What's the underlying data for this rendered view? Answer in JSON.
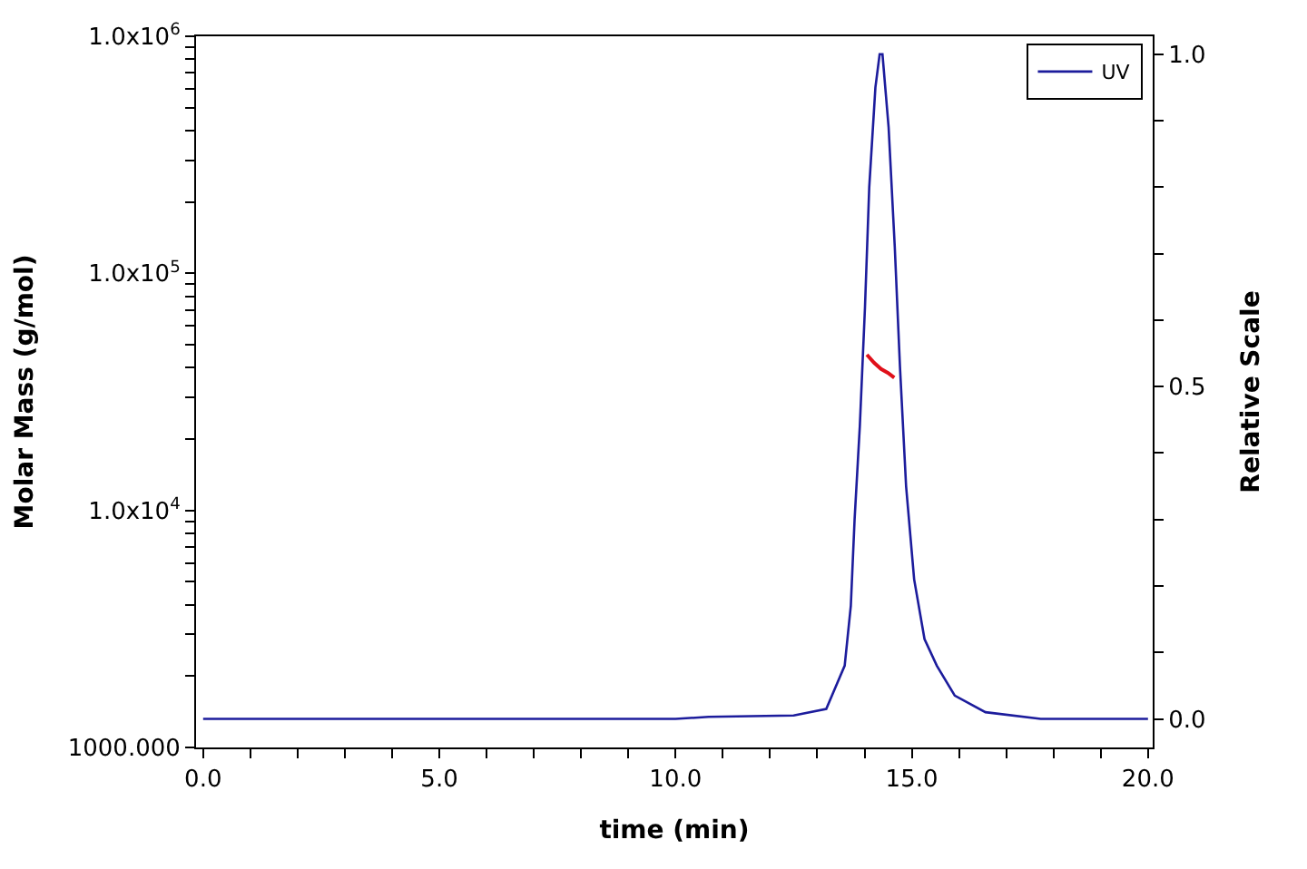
{
  "chart_data": {
    "type": "line",
    "xlabel": "time (min)",
    "ylabel": "Molar Mass (g/mol)",
    "y2label": "Relative Scale",
    "xlim": [
      -0.15,
      20.1
    ],
    "xticks": [
      {
        "value": 0,
        "label": "0.0"
      },
      {
        "value": 1,
        "label": null
      },
      {
        "value": 2,
        "label": null
      },
      {
        "value": 3,
        "label": null
      },
      {
        "value": 4,
        "label": null
      },
      {
        "value": 5,
        "label": "5.0"
      },
      {
        "value": 6,
        "label": null
      },
      {
        "value": 7,
        "label": null
      },
      {
        "value": 8,
        "label": null
      },
      {
        "value": 9,
        "label": null
      },
      {
        "value": 10,
        "label": "10.0"
      },
      {
        "value": 11,
        "label": null
      },
      {
        "value": 12,
        "label": null
      },
      {
        "value": 13,
        "label": null
      },
      {
        "value": 14,
        "label": null
      },
      {
        "value": 15,
        "label": "15.0"
      },
      {
        "value": 16,
        "label": null
      },
      {
        "value": 17,
        "label": null
      },
      {
        "value": 18,
        "label": null
      },
      {
        "value": 19,
        "label": null
      },
      {
        "value": 20,
        "label": "20.0"
      }
    ],
    "log": "y",
    "ylim": [
      1000,
      1000000
    ],
    "yticks": [
      {
        "value": 1000,
        "label": "1000.000"
      },
      {
        "value": 2000,
        "label": null
      },
      {
        "value": 3000,
        "label": null
      },
      {
        "value": 4000,
        "label": null
      },
      {
        "value": 5000,
        "label": null
      },
      {
        "value": 6000,
        "label": null
      },
      {
        "value": 7000,
        "label": null
      },
      {
        "value": 8000,
        "label": null
      },
      {
        "value": 9000,
        "label": null
      },
      {
        "value": 10000,
        "label": "1.0x10$^{4}$"
      },
      {
        "value": 20000,
        "label": null
      },
      {
        "value": 30000,
        "label": null
      },
      {
        "value": 40000,
        "label": null
      },
      {
        "value": 50000,
        "label": null
      },
      {
        "value": 60000,
        "label": null
      },
      {
        "value": 70000,
        "label": null
      },
      {
        "value": 80000,
        "label": null
      },
      {
        "value": 90000,
        "label": null
      },
      {
        "value": 100000,
        "label": "1.0x10$^{5}$"
      },
      {
        "value": 200000,
        "label": null
      },
      {
        "value": 300000,
        "label": null
      },
      {
        "value": 400000,
        "label": null
      },
      {
        "value": 500000,
        "label": null
      },
      {
        "value": 600000,
        "label": null
      },
      {
        "value": 700000,
        "label": null
      },
      {
        "value": 800000,
        "label": null
      },
      {
        "value": 900000,
        "label": null
      },
      {
        "value": 1000000,
        "label": "1.0x10$^{6}$"
      }
    ],
    "y2lim": [
      -0.043,
      1.027
    ],
    "y2ticks": [
      {
        "value": 0,
        "label": "0.0"
      },
      {
        "value": 0.1,
        "label": null
      },
      {
        "value": 0.2,
        "label": null
      },
      {
        "value": 0.3,
        "label": null
      },
      {
        "value": 0.4,
        "label": null
      },
      {
        "value": 0.5,
        "label": "0.5"
      },
      {
        "value": 0.6,
        "label": null
      },
      {
        "value": 0.7,
        "label": null
      },
      {
        "value": 0.8,
        "label": null
      },
      {
        "value": 0.9,
        "label": null
      },
      {
        "value": 1.0,
        "label": "1.0"
      }
    ],
    "legend": "top right",
    "marker": "none",
    "line_style": "solid",
    "series": [
      {
        "name": "UV",
        "color": "#1c1c9c",
        "axis": "y2",
        "x": [
          0,
          5,
          10,
          10.7,
          12.5,
          13.19,
          13.58,
          13.71,
          13.79,
          13.9,
          14.01,
          14.1,
          14.23,
          14.32,
          14.38,
          14.51,
          14.64,
          14.75,
          14.88,
          15.05,
          15.27,
          15.53,
          15.91,
          16.56,
          17.73,
          20
        ],
        "values": [
          0.0,
          0.0,
          0.0,
          0.003,
          0.005,
          0.015,
          0.08,
          0.17,
          0.3,
          0.44,
          0.62,
          0.8,
          0.95,
          1.0,
          1.0,
          0.89,
          0.71,
          0.53,
          0.35,
          0.21,
          0.12,
          0.08,
          0.035,
          0.01,
          0.0,
          0.0
        ]
      },
      {
        "color": "#e0101a",
        "axis": "y",
        "x": [
          14.05,
          14.2,
          14.35,
          14.5,
          14.63
        ],
        "values": [
          45400,
          42000,
          39500,
          38000,
          36300
        ]
      }
    ]
  }
}
